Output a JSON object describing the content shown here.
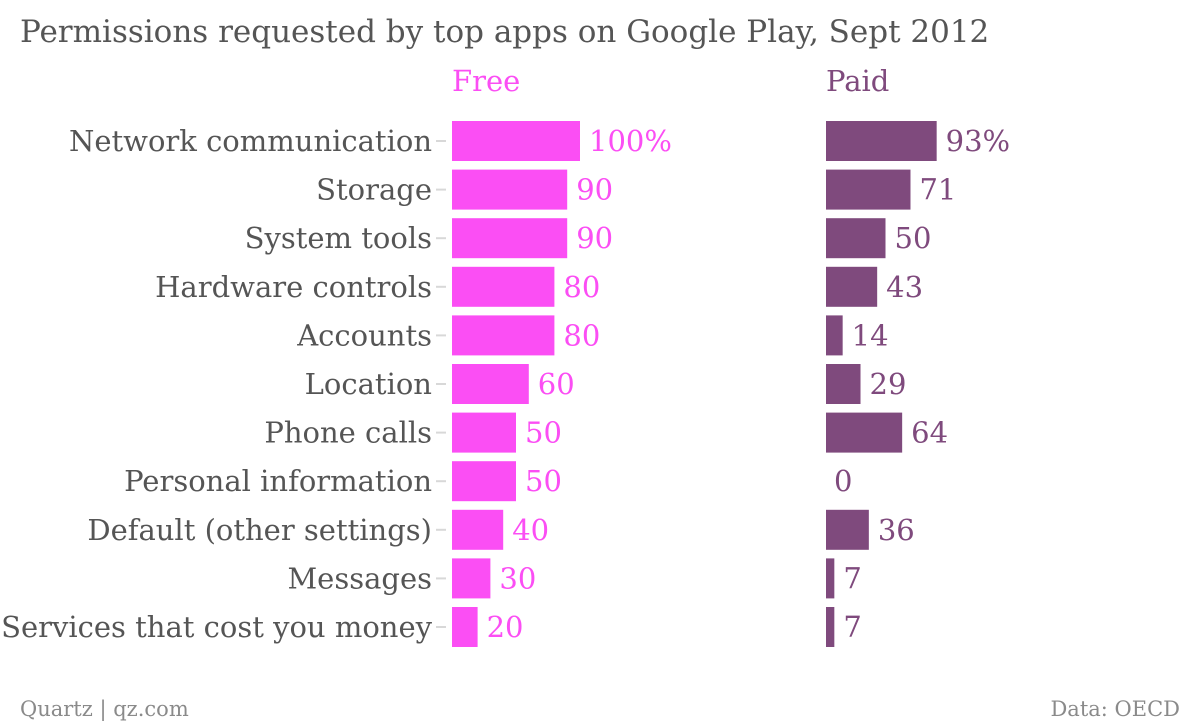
{
  "chart_data": {
    "type": "bar",
    "orientation": "horizontal",
    "title": "Permissions requested by top apps on Google Play, Sept 2012",
    "categories": [
      "Network communication",
      "Storage",
      "System tools",
      "Hardware controls",
      "Accounts",
      "Location",
      "Phone calls",
      "Personal information",
      "Default (other settings)",
      "Messages",
      "Services that cost you money"
    ],
    "series": [
      {
        "name": "Free",
        "color": "#fb4ef4",
        "values": [
          100,
          90,
          90,
          80,
          80,
          60,
          50,
          50,
          40,
          30,
          20
        ],
        "labels": [
          "100%",
          "90",
          "90",
          "80",
          "80",
          "60",
          "50",
          "50",
          "40",
          "30",
          "20"
        ]
      },
      {
        "name": "Paid",
        "color": "#7f4a7d",
        "values": [
          93,
          71,
          50,
          43,
          14,
          29,
          64,
          0,
          36,
          7,
          7
        ],
        "labels": [
          "93%",
          "71",
          "50",
          "43",
          "14",
          "29",
          "64",
          "0",
          "36",
          "7",
          "7"
        ]
      }
    ],
    "xlim": [
      0,
      100
    ],
    "grid": false,
    "legend": "panel-titles"
  },
  "footer": {
    "source_left": "Quartz | qz.com",
    "source_right": "Data: OECD"
  }
}
